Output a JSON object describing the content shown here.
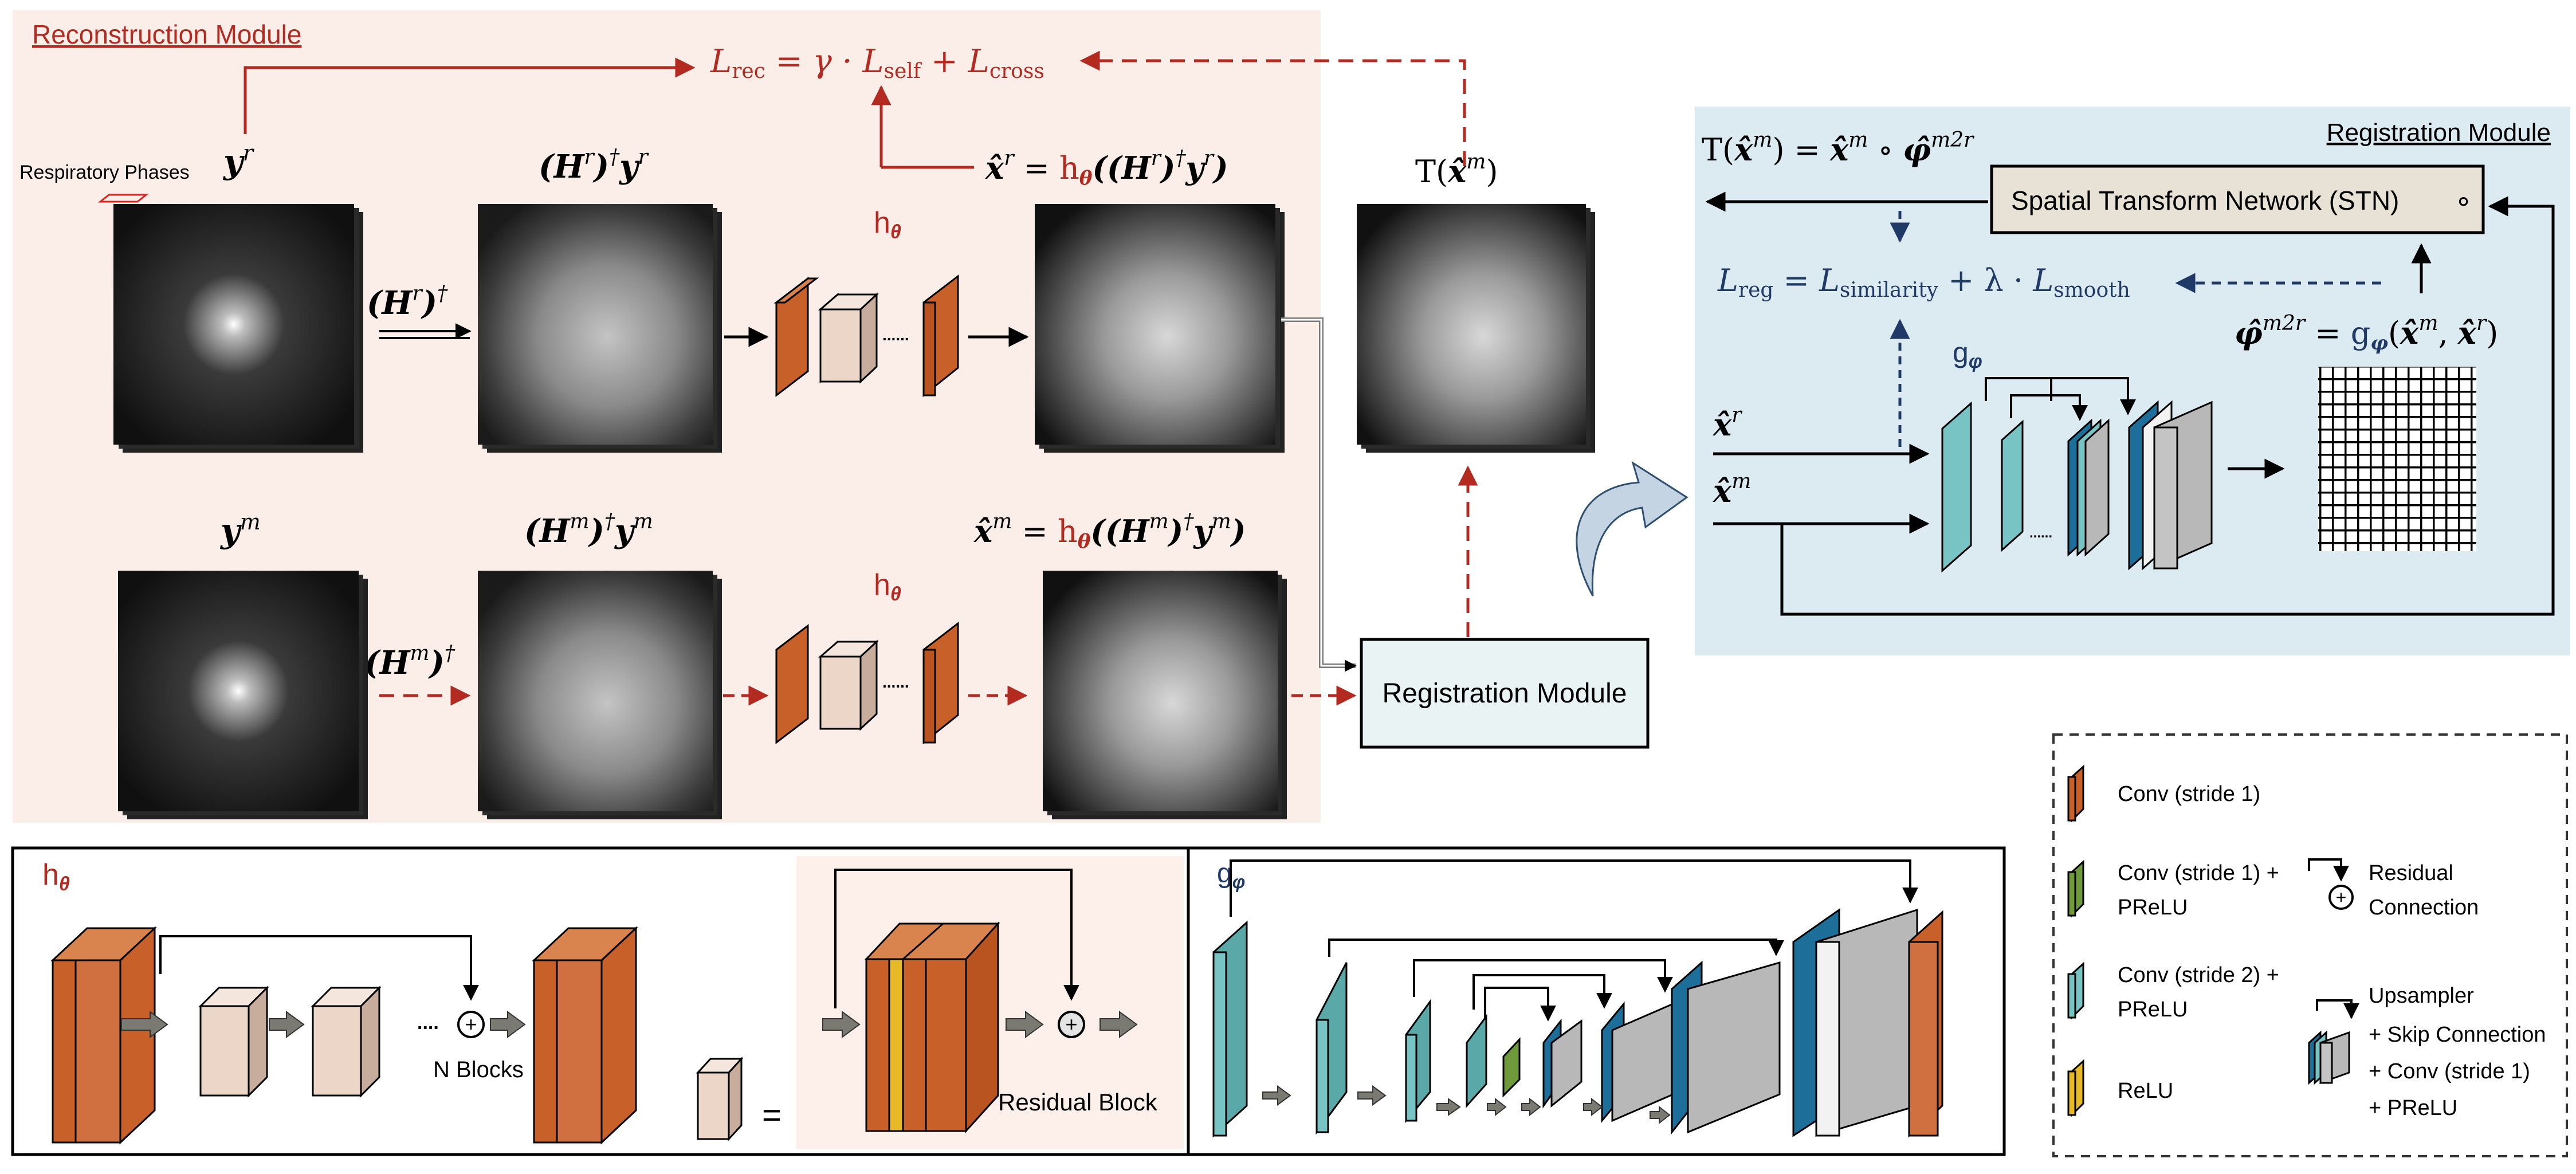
{
  "reconstruction": {
    "title": "Reconstruction Module",
    "respiratory_phases": "Respiratory Phases",
    "loss_rec": "L_rec = γ · L_self + L_cross",
    "y_r": "y^r",
    "y_m": "y^m",
    "H_r_dag": "(H^r)^†",
    "H_m_dag": "(H^m)^†",
    "H_r_dag_y_r": "(H^r)^† y^r",
    "H_m_dag_y_m": "(H^m)^† y^m",
    "h_theta": "h_θ",
    "x_r_hat_eq": "x̂^r = h_θ((H^r)^† y^r)",
    "x_m_hat_eq": "x̂^m = h_θ((H^m)^† y^m)",
    "T_x_m": "T(x̂^m)",
    "dots": "......",
    "registration_box": "Registration Module"
  },
  "registration": {
    "title": "Registration Module",
    "T_eq": "T(x̂^m) = x̂^m ∘ φ̂^{m2r}",
    "stn": "Spatial Transform Network (STN)",
    "compose_symbol": "∘",
    "loss_reg": "L_reg = L_similarity + λ · L_smooth",
    "g_phi": "g_φ",
    "phi_eq": "φ̂^{m2r} = g_φ(x̂^m, x̂^r)",
    "x_r": "x̂^r",
    "x_m": "x̂^m",
    "dots": "......"
  },
  "bottom_left": {
    "h_theta": "h_θ",
    "n_blocks": "N Blocks",
    "equals": "=",
    "residual_block": "Residual Block",
    "dots": "....",
    "plus": "+"
  },
  "bottom_middle": {
    "g_phi": "g_φ"
  },
  "legend": {
    "items": [
      {
        "label_lines": [
          "Conv (stride 1)"
        ],
        "color": "#c8602a"
      },
      {
        "label_lines": [
          "Conv (stride 1) +",
          "PReLU"
        ],
        "color": "#6f9a3c"
      },
      {
        "label_lines": [
          "Conv (stride 2) +",
          "PReLU"
        ],
        "color": "#78c3c3"
      },
      {
        "label_lines": [
          "ReLU"
        ],
        "color": "#e8b926"
      }
    ],
    "residual_lines": [
      "Residual",
      "Connection"
    ],
    "upsampler_lines": [
      "Upsampler",
      "+ Skip Connection",
      "+ Conv (stride 1)",
      "+ PReLU"
    ]
  },
  "colors": {
    "recon_bg": "#fbeee8",
    "reg_bg": "#dcebf2",
    "red": "#b22a20",
    "navy": "#1f3a66",
    "orange": "#c8602a",
    "cream": "#ecd6c8",
    "teal": "#78c3c3",
    "blue": "#1d6f9a",
    "gray": "#b8b8b8"
  }
}
